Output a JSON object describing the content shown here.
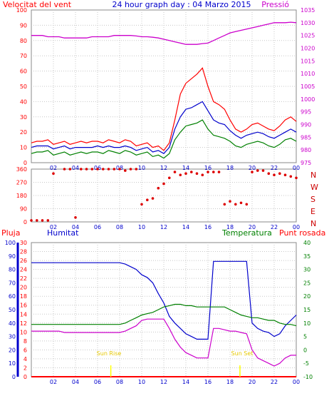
{
  "top_header": {
    "left": "Velocitat del vent",
    "center": "24 hour graph day : 04 Marzo 2015",
    "right": "Pressió"
  },
  "bottom_header": {
    "pluja": "Pluja",
    "humitat": "Humitat",
    "temperatura": "Temperatura",
    "punt_rosada": "Punt rosada"
  },
  "annotations": {
    "sunrise": "Sun Rise",
    "sunset": "Sun Set"
  },
  "direction_letters": [
    "N",
    "W",
    "S",
    "E",
    "N"
  ],
  "colors": {
    "wind_gust": "#ff0000",
    "wind_avg": "#0000cc",
    "wind_speed": "#008000",
    "pressure": "#cc00cc",
    "direction": "#dd0000",
    "humidity": "#0000cc",
    "temperature": "#008000",
    "dewpoint": "#cc00cc",
    "rain": "#ff0000",
    "sun": "#ffff00"
  },
  "chart_data": [
    {
      "type": "line",
      "name": "wind-pressure",
      "x": [
        0,
        0.5,
        1,
        1.5,
        2,
        2.5,
        3,
        3.5,
        4,
        4.5,
        5,
        5.5,
        6,
        6.5,
        7,
        7.5,
        8,
        8.5,
        9,
        9.5,
        10,
        10.5,
        11,
        11.5,
        12,
        12.5,
        13,
        13.5,
        14,
        14.5,
        15,
        15.5,
        16,
        16.5,
        17,
        17.5,
        18,
        18.5,
        19,
        19.5,
        20,
        20.5,
        21,
        21.5,
        22,
        22.5,
        23,
        23.5,
        24
      ],
      "xticks": [
        "02",
        "04",
        "06",
        "08",
        "10",
        "12",
        "14",
        "16",
        "18",
        "20",
        "22",
        "00"
      ],
      "yticks_left": [
        "0",
        "10",
        "20",
        "30",
        "40",
        "50",
        "60",
        "70",
        "80",
        "90",
        "100"
      ],
      "yticks_right": [
        "975",
        "980",
        "985",
        "990",
        "995",
        "1000",
        "1005",
        "1010",
        "1015",
        "1020",
        "1025",
        "1030",
        "1035"
      ],
      "ylim_left": [
        0,
        100
      ],
      "ylim_right": [
        975,
        1035
      ],
      "series": [
        {
          "name": "gust",
          "axis": "left",
          "values": [
            13,
            14,
            14,
            15,
            12,
            13,
            14,
            12,
            13,
            14,
            13,
            14,
            14,
            13,
            15,
            14,
            13,
            15,
            14,
            11,
            12,
            13,
            10,
            11,
            8,
            13,
            28,
            45,
            52,
            55,
            58,
            62,
            50,
            40,
            38,
            35,
            28,
            22,
            20,
            22,
            25,
            26,
            24,
            22,
            21,
            24,
            28,
            30,
            27
          ]
        },
        {
          "name": "average",
          "axis": "left",
          "values": [
            10,
            11,
            11,
            11,
            9,
            10,
            11,
            9,
            10,
            10,
            10,
            10,
            11,
            10,
            11,
            10,
            10,
            11,
            10,
            8,
            9,
            10,
            7,
            8,
            6,
            10,
            22,
            30,
            35,
            36,
            38,
            40,
            34,
            28,
            26,
            25,
            21,
            18,
            16,
            18,
            19,
            20,
            19,
            17,
            16,
            18,
            20,
            22,
            20
          ]
        },
        {
          "name": "speed",
          "axis": "left",
          "values": [
            6,
            7,
            7,
            8,
            5,
            6,
            7,
            5,
            6,
            7,
            6,
            7,
            7,
            6,
            8,
            7,
            6,
            8,
            7,
            5,
            6,
            7,
            4,
            5,
            3,
            6,
            15,
            20,
            24,
            25,
            26,
            28,
            22,
            18,
            17,
            16,
            14,
            11,
            10,
            12,
            13,
            14,
            13,
            11,
            10,
            12,
            15,
            16,
            14
          ]
        },
        {
          "name": "pressure",
          "axis": "right",
          "values": [
            1025,
            1025,
            1025,
            1024.5,
            1024.5,
            1024.5,
            1024,
            1024,
            1024,
            1024,
            1024,
            1024.5,
            1024.5,
            1024.5,
            1024.5,
            1025,
            1025,
            1025,
            1025,
            1024.8,
            1024.5,
            1024.5,
            1024.3,
            1024,
            1023.5,
            1023,
            1022.5,
            1022,
            1021.5,
            1021.5,
            1021.5,
            1021.8,
            1022,
            1023,
            1024,
            1025,
            1026,
            1026.5,
            1027,
            1027.5,
            1028,
            1028.5,
            1029,
            1029.5,
            1030,
            1030,
            1030,
            1030.2,
            1030
          ]
        }
      ]
    },
    {
      "type": "scatter",
      "name": "wind-direction",
      "yticks_left": [
        "0",
        "90",
        "180",
        "270",
        "360"
      ],
      "ylim": [
        0,
        360
      ],
      "x": [
        0,
        0.5,
        1,
        1.5,
        2,
        3,
        3.5,
        4,
        4.5,
        5,
        5.5,
        6,
        6.5,
        7,
        7.5,
        8,
        8.5,
        9,
        9.5,
        10,
        10.5,
        11,
        11.5,
        12,
        12.5,
        13,
        13.5,
        14,
        14.5,
        15,
        15.5,
        16,
        16.5,
        17,
        17.5,
        18,
        18.5,
        19,
        19.5,
        20,
        20.5,
        21,
        21.5,
        22,
        22.5,
        23,
        23.5,
        24
      ],
      "values": [
        10,
        10,
        10,
        10,
        330,
        360,
        360,
        30,
        360,
        360,
        360,
        360,
        360,
        360,
        360,
        360,
        350,
        360,
        360,
        120,
        150,
        160,
        230,
        260,
        300,
        340,
        320,
        330,
        340,
        330,
        320,
        340,
        340,
        340,
        120,
        140,
        120,
        130,
        120,
        340,
        350,
        350,
        330,
        320,
        330,
        320,
        310,
        300
      ]
    },
    {
      "type": "line",
      "name": "humidity-temp",
      "x": [
        0,
        0.5,
        1,
        1.5,
        2,
        2.5,
        3,
        3.5,
        4,
        4.5,
        5,
        5.5,
        6,
        6.5,
        7,
        7.5,
        8,
        8.5,
        9,
        9.5,
        10,
        10.5,
        11,
        11.5,
        12,
        12.5,
        13,
        13.5,
        14,
        14.5,
        15,
        15.5,
        16,
        16.5,
        17,
        17.5,
        18,
        18.5,
        19,
        19.5,
        20,
        20.5,
        21,
        21.5,
        22,
        22.5,
        23,
        23.5,
        24
      ],
      "yticks_pluja": [
        "0",
        "2",
        "4",
        "6",
        "8",
        "10",
        "12",
        "14",
        "16",
        "18",
        "20",
        "22",
        "24",
        "26",
        "28",
        "30"
      ],
      "yticks_humitat": [
        "0",
        "10",
        "20",
        "30",
        "40",
        "50",
        "60",
        "70",
        "80",
        "90",
        "100"
      ],
      "yticks_temp": [
        "-10",
        "-5",
        "0",
        "5",
        "10",
        "15",
        "20",
        "25",
        "30",
        "35",
        "40"
      ],
      "ylim_humitat": [
        0,
        100
      ],
      "ylim_temp": [
        -10,
        40
      ],
      "series": [
        {
          "name": "humidity",
          "axis": "humitat",
          "values": [
            85,
            85,
            85,
            85,
            85,
            85,
            85,
            85,
            85,
            85,
            85,
            85,
            85,
            85,
            85,
            85,
            85,
            84,
            82,
            80,
            76,
            74,
            70,
            62,
            55,
            45,
            40,
            36,
            32,
            30,
            28,
            28,
            28,
            86,
            86,
            86,
            86,
            86,
            86,
            86,
            40,
            36,
            34,
            33,
            30,
            32,
            38,
            42,
            46
          ]
        },
        {
          "name": "temperature",
          "axis": "temp",
          "values": [
            9.5,
            9.5,
            9.5,
            9.5,
            9.5,
            9.5,
            9.5,
            9.5,
            9.5,
            9.5,
            9.5,
            9.5,
            9.5,
            9.5,
            9.5,
            9.5,
            9.5,
            10,
            11,
            12,
            13,
            13.5,
            14,
            15,
            16,
            16.5,
            17,
            17,
            16.5,
            16.5,
            16,
            16,
            16,
            16,
            16,
            16,
            15,
            14,
            13,
            12.5,
            12,
            12,
            11.5,
            11,
            11,
            10,
            9.5,
            9.5,
            9
          ]
        },
        {
          "name": "dewpoint",
          "axis": "temp",
          "values": [
            7,
            7,
            7,
            7,
            7,
            7,
            6.5,
            6.5,
            6.5,
            6.5,
            6.5,
            6.5,
            6.5,
            6.5,
            6.5,
            6.5,
            6.5,
            7,
            8,
            9,
            11,
            11.5,
            11.5,
            11.5,
            11.5,
            8,
            4,
            1,
            -1,
            -2,
            -3,
            -3,
            -3,
            8,
            8,
            7.5,
            7,
            7,
            6.5,
            6,
            0,
            -3,
            -4,
            -5,
            -6,
            -5,
            -3,
            -2,
            -2
          ]
        },
        {
          "name": "rain",
          "axis": "pluja",
          "values": [
            0,
            0,
            0,
            0,
            0,
            0,
            0,
            0,
            0,
            0,
            0,
            0,
            0,
            0,
            0,
            0,
            0,
            0,
            0,
            0,
            0,
            0,
            0,
            0,
            0,
            0,
            0,
            0,
            0,
            0,
            0,
            0,
            0,
            0,
            0,
            0,
            0,
            0,
            0,
            0,
            0,
            0,
            0,
            0,
            0,
            0,
            0,
            0,
            0
          ]
        }
      ],
      "sunrise_hour": 7.2,
      "sunset_hour": 18.9
    }
  ]
}
